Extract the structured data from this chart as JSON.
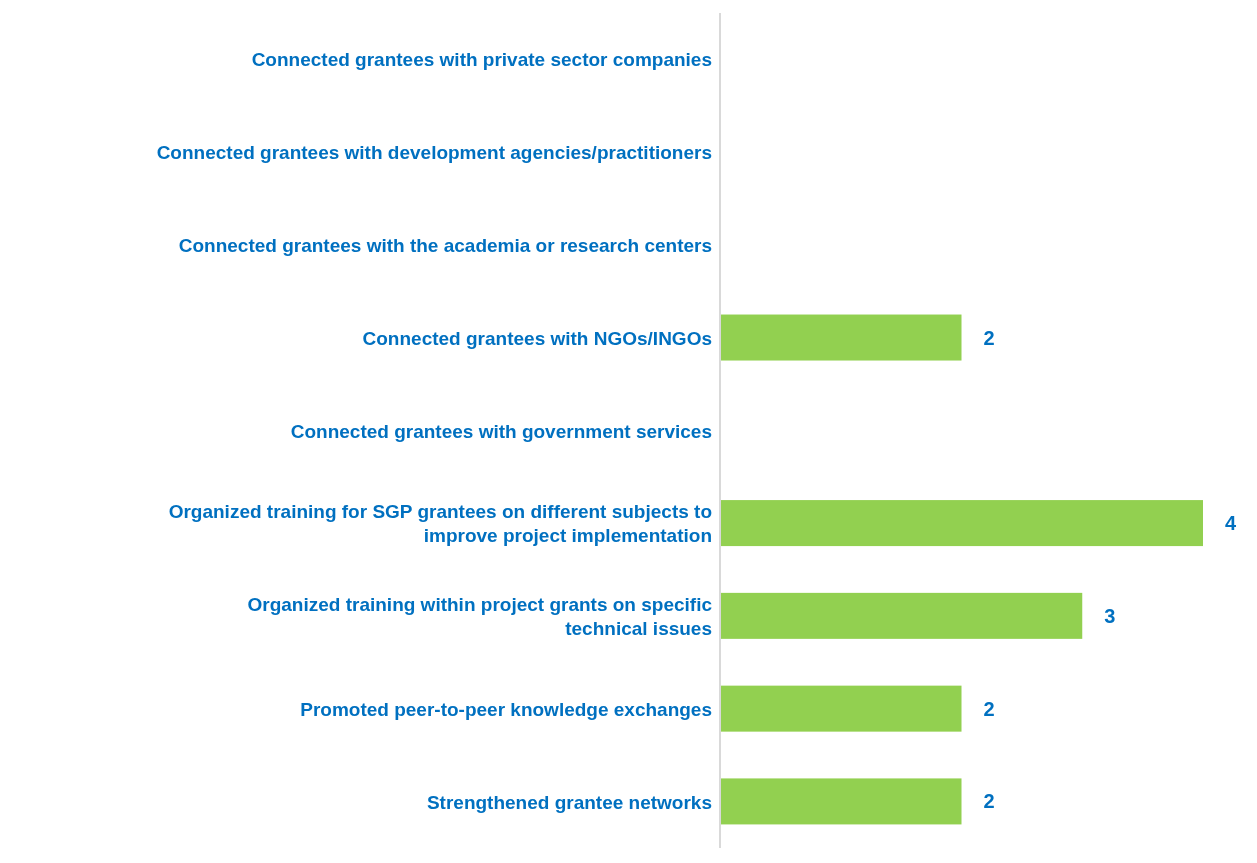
{
  "chart_data": {
    "type": "bar",
    "orientation": "horizontal",
    "categories": [
      "Connected grantees with private sector companies",
      "Connected grantees with development agencies/practitioners",
      "Connected grantees with the academia or research centers",
      "Connected grantees with NGOs/INGOs",
      "Connected grantees with government services",
      "Organized training for SGP grantees on different subjects to improve project implementation",
      "Organized training within project grants on specific technical issues",
      "Promoted peer-to-peer knowledge exchanges",
      "Strengthened grantee networks"
    ],
    "values": [
      0,
      0,
      0,
      2,
      0,
      4,
      3,
      2,
      2
    ],
    "value_labels": [
      null,
      null,
      null,
      "2",
      null,
      "4",
      "3",
      "2",
      "2"
    ],
    "color": "#92d050"
  }
}
